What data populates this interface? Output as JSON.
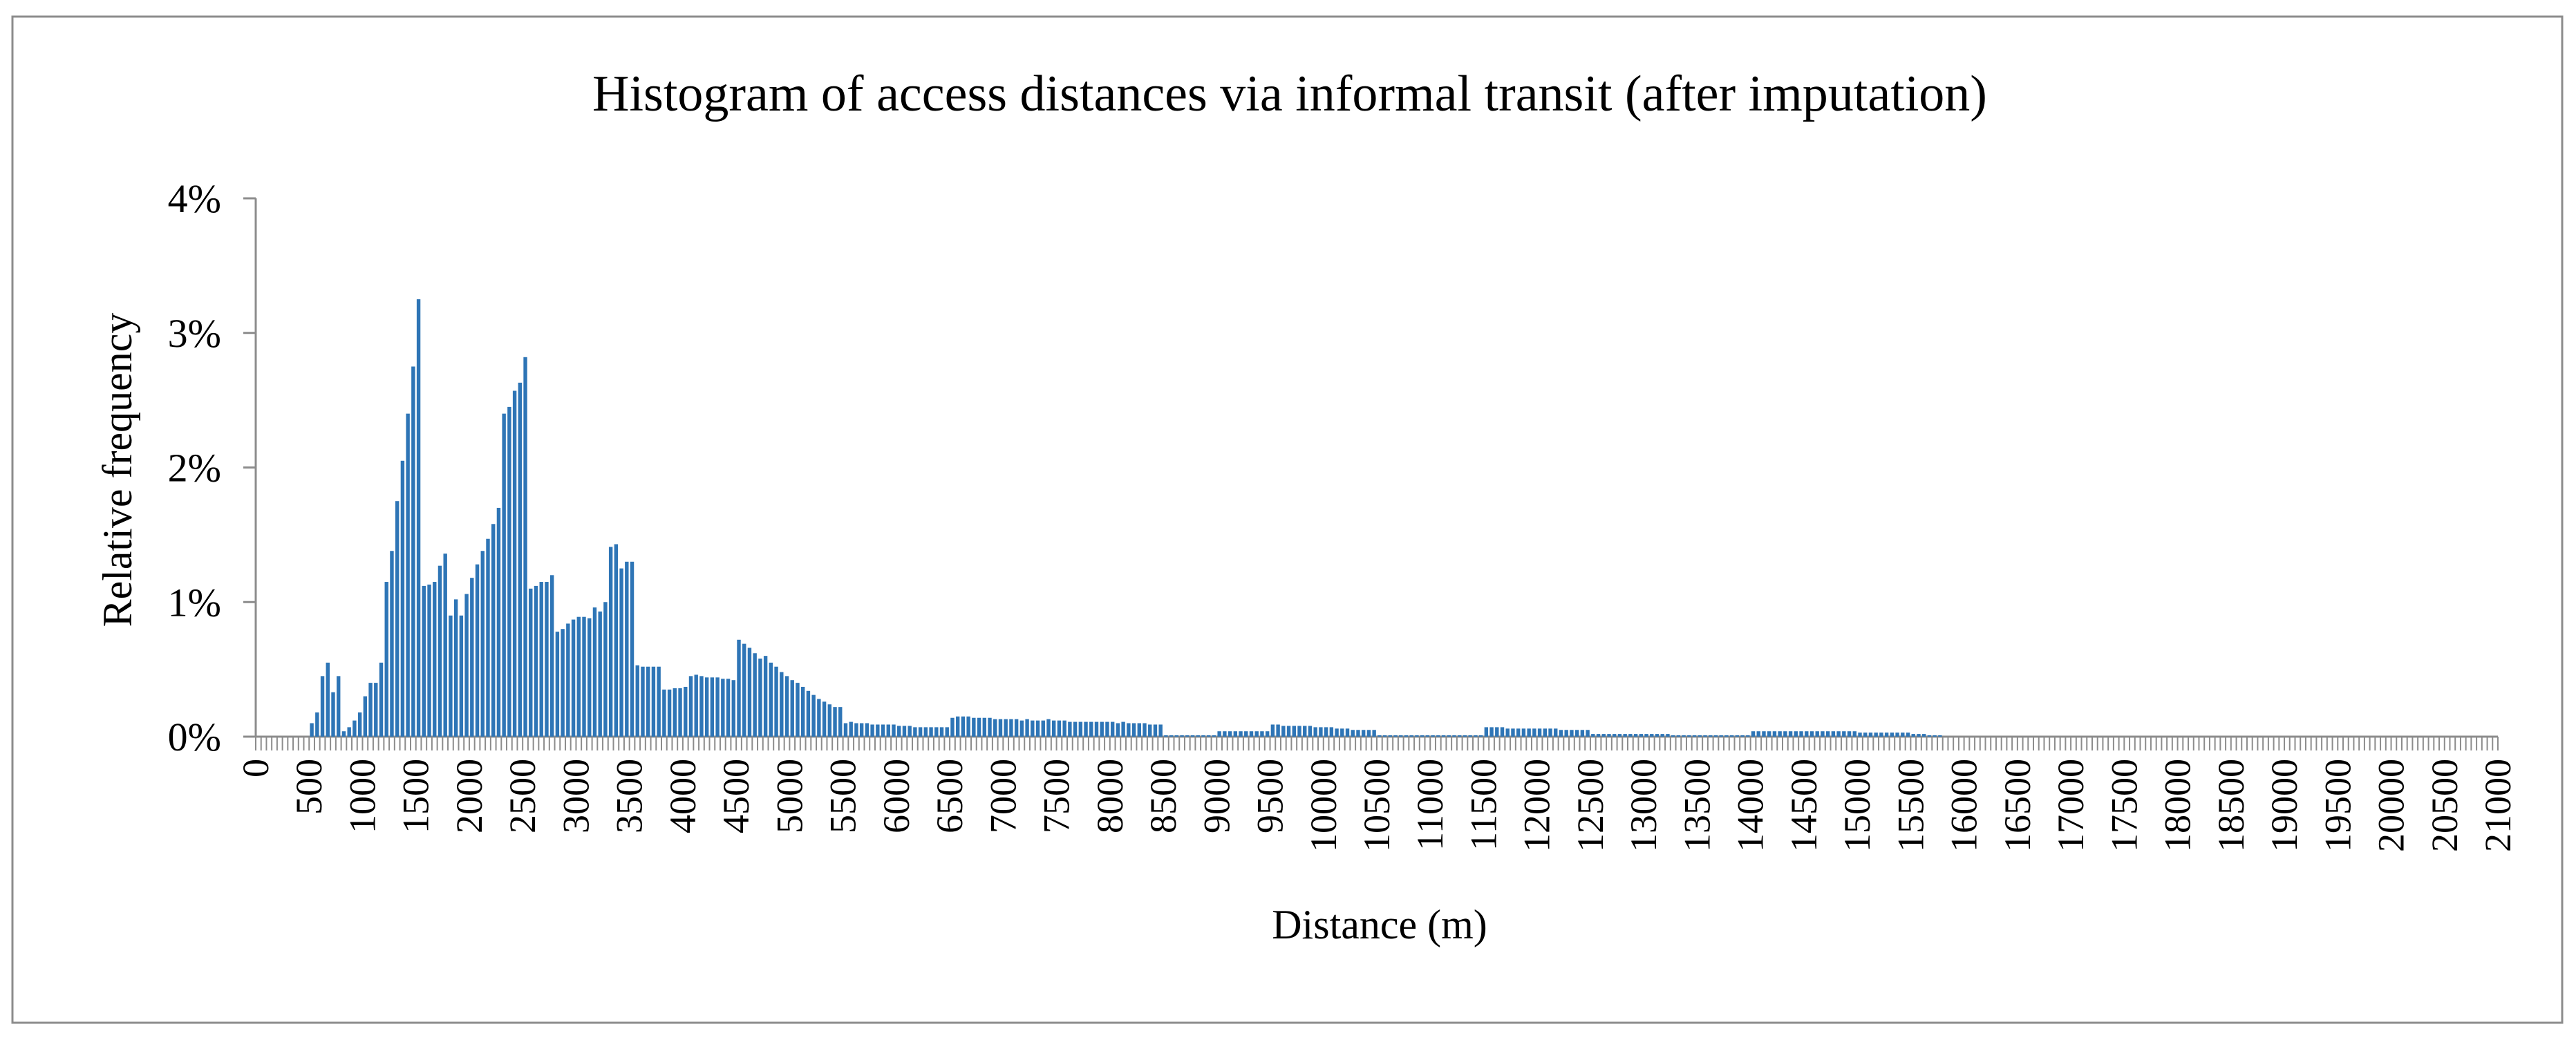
{
  "chart_data": {
    "type": "bar",
    "title": "Histogram of access distances via informal transit (after imputation)",
    "xlabel": "Distance (m)",
    "ylabel": "Relative  frequency",
    "y_ticks": [
      "0%",
      "1%",
      "2%",
      "3%",
      "4%"
    ],
    "ylim": [
      0,
      4
    ],
    "y_unit": "%",
    "x_ticks": [
      "0",
      "500",
      "1000",
      "1500",
      "2000",
      "2500",
      "3000",
      "3500",
      "4000",
      "4500",
      "5000",
      "5500",
      "6000",
      "6500",
      "7000",
      "7500",
      "8000",
      "8500",
      "9000",
      "9500",
      "10000",
      "10500",
      "11000",
      "11500",
      "12000",
      "12500",
      "13000",
      "13500",
      "14000",
      "14500",
      "15000",
      "15500",
      "16000",
      "16500",
      "17000",
      "17500",
      "18000",
      "18500",
      "19000",
      "19500",
      "20000",
      "20500",
      "21000"
    ],
    "xlim": [
      0,
      21000
    ],
    "bin_width": 50,
    "grid": false,
    "legend": "none",
    "bar_color": "#2e75b6",
    "points": [
      [
        500,
        0.1
      ],
      [
        550,
        0.18
      ],
      [
        600,
        0.45
      ],
      [
        650,
        0.55
      ],
      [
        700,
        0.33
      ],
      [
        750,
        0.45
      ],
      [
        800,
        0.04
      ],
      [
        850,
        0.07
      ],
      [
        900,
        0.12
      ],
      [
        950,
        0.18
      ],
      [
        1000,
        0.3
      ],
      [
        1050,
        0.4
      ],
      [
        1100,
        0.4
      ],
      [
        1150,
        0.55
      ],
      [
        1200,
        1.15
      ],
      [
        1250,
        1.38
      ],
      [
        1300,
        1.75
      ],
      [
        1350,
        2.05
      ],
      [
        1400,
        2.4
      ],
      [
        1450,
        2.75
      ],
      [
        1500,
        3.25
      ],
      [
        1550,
        1.12
      ],
      [
        1600,
        1.13
      ],
      [
        1650,
        1.15
      ],
      [
        1700,
        1.27
      ],
      [
        1750,
        1.36
      ],
      [
        1800,
        0.9
      ],
      [
        1850,
        1.02
      ],
      [
        1900,
        0.9
      ],
      [
        1950,
        1.06
      ],
      [
        2000,
        1.18
      ],
      [
        2050,
        1.28
      ],
      [
        2100,
        1.38
      ],
      [
        2150,
        1.47
      ],
      [
        2200,
        1.58
      ],
      [
        2250,
        1.7
      ],
      [
        2300,
        2.4
      ],
      [
        2350,
        2.45
      ],
      [
        2400,
        2.57
      ],
      [
        2450,
        2.63
      ],
      [
        2500,
        2.82
      ],
      [
        2550,
        1.1
      ],
      [
        2600,
        1.12
      ],
      [
        2650,
        1.15
      ],
      [
        2700,
        1.15
      ],
      [
        2750,
        1.2
      ],
      [
        2800,
        0.78
      ],
      [
        2850,
        0.8
      ],
      [
        2900,
        0.84
      ],
      [
        2950,
        0.87
      ],
      [
        3000,
        0.89
      ],
      [
        3050,
        0.89
      ],
      [
        3100,
        0.88
      ],
      [
        3150,
        0.96
      ],
      [
        3200,
        0.93
      ],
      [
        3250,
        1.0
      ],
      [
        3300,
        1.41
      ],
      [
        3350,
        1.43
      ],
      [
        3400,
        1.25
      ],
      [
        3450,
        1.3
      ],
      [
        3500,
        1.3
      ],
      [
        3550,
        0.53
      ],
      [
        3600,
        0.52
      ],
      [
        3650,
        0.52
      ],
      [
        3700,
        0.52
      ],
      [
        3750,
        0.52
      ],
      [
        3800,
        0.35
      ],
      [
        3850,
        0.35
      ],
      [
        3900,
        0.36
      ],
      [
        3950,
        0.36
      ],
      [
        4000,
        0.37
      ],
      [
        4050,
        0.45
      ],
      [
        4100,
        0.46
      ],
      [
        4150,
        0.45
      ],
      [
        4200,
        0.44
      ],
      [
        4250,
        0.44
      ],
      [
        4300,
        0.44
      ],
      [
        4350,
        0.43
      ],
      [
        4400,
        0.43
      ],
      [
        4450,
        0.42
      ],
      [
        4500,
        0.72
      ],
      [
        4550,
        0.69
      ],
      [
        4600,
        0.66
      ],
      [
        4650,
        0.62
      ],
      [
        4700,
        0.58
      ],
      [
        4750,
        0.6
      ],
      [
        4800,
        0.55
      ],
      [
        4850,
        0.52
      ],
      [
        4900,
        0.48
      ],
      [
        4950,
        0.45
      ],
      [
        5000,
        0.42
      ],
      [
        5050,
        0.4
      ],
      [
        5100,
        0.37
      ],
      [
        5150,
        0.34
      ],
      [
        5200,
        0.31
      ],
      [
        5250,
        0.28
      ],
      [
        5300,
        0.26
      ],
      [
        5350,
        0.24
      ],
      [
        5400,
        0.22
      ],
      [
        5450,
        0.22
      ],
      [
        5500,
        0.1
      ],
      [
        5550,
        0.11
      ],
      [
        5600,
        0.1
      ],
      [
        5650,
        0.1
      ],
      [
        5700,
        0.1
      ],
      [
        5750,
        0.09
      ],
      [
        5800,
        0.09
      ],
      [
        5850,
        0.09
      ],
      [
        5900,
        0.09
      ],
      [
        5950,
        0.09
      ],
      [
        6000,
        0.08
      ],
      [
        6050,
        0.08
      ],
      [
        6100,
        0.08
      ],
      [
        6150,
        0.07
      ],
      [
        6200,
        0.07
      ],
      [
        6250,
        0.07
      ],
      [
        6300,
        0.07
      ],
      [
        6350,
        0.07
      ],
      [
        6400,
        0.07
      ],
      [
        6450,
        0.07
      ],
      [
        6500,
        0.14
      ],
      [
        6550,
        0.15
      ],
      [
        6600,
        0.15
      ],
      [
        6650,
        0.15
      ],
      [
        6700,
        0.14
      ],
      [
        6750,
        0.14
      ],
      [
        6800,
        0.14
      ],
      [
        6850,
        0.14
      ],
      [
        6900,
        0.13
      ],
      [
        6950,
        0.13
      ],
      [
        7000,
        0.13
      ],
      [
        7050,
        0.13
      ],
      [
        7100,
        0.13
      ],
      [
        7150,
        0.12
      ],
      [
        7200,
        0.13
      ],
      [
        7250,
        0.12
      ],
      [
        7300,
        0.12
      ],
      [
        7350,
        0.12
      ],
      [
        7400,
        0.13
      ],
      [
        7450,
        0.12
      ],
      [
        7500,
        0.12
      ],
      [
        7550,
        0.12
      ],
      [
        7600,
        0.11
      ],
      [
        7650,
        0.11
      ],
      [
        7700,
        0.11
      ],
      [
        7750,
        0.11
      ],
      [
        7800,
        0.11
      ],
      [
        7850,
        0.11
      ],
      [
        7900,
        0.11
      ],
      [
        7950,
        0.11
      ],
      [
        8000,
        0.11
      ],
      [
        8050,
        0.1
      ],
      [
        8100,
        0.11
      ],
      [
        8150,
        0.1
      ],
      [
        8200,
        0.1
      ],
      [
        8250,
        0.1
      ],
      [
        8300,
        0.1
      ],
      [
        8350,
        0.09
      ],
      [
        8400,
        0.09
      ],
      [
        8450,
        0.09
      ],
      [
        8500,
        0.01
      ],
      [
        8550,
        0.01
      ],
      [
        8600,
        0.01
      ],
      [
        8650,
        0.01
      ],
      [
        8700,
        0.01
      ],
      [
        8750,
        0.01
      ],
      [
        8800,
        0.01
      ],
      [
        8850,
        0.01
      ],
      [
        8900,
        0.01
      ],
      [
        8950,
        0.01
      ],
      [
        9000,
        0.04
      ],
      [
        9050,
        0.04
      ],
      [
        9100,
        0.04
      ],
      [
        9150,
        0.04
      ],
      [
        9200,
        0.04
      ],
      [
        9250,
        0.04
      ],
      [
        9300,
        0.04
      ],
      [
        9350,
        0.04
      ],
      [
        9400,
        0.04
      ],
      [
        9450,
        0.04
      ],
      [
        9500,
        0.09
      ],
      [
        9550,
        0.09
      ],
      [
        9600,
        0.08
      ],
      [
        9650,
        0.08
      ],
      [
        9700,
        0.08
      ],
      [
        9750,
        0.08
      ],
      [
        9800,
        0.08
      ],
      [
        9850,
        0.08
      ],
      [
        9900,
        0.07
      ],
      [
        9950,
        0.07
      ],
      [
        10000,
        0.07
      ],
      [
        10050,
        0.07
      ],
      [
        10100,
        0.06
      ],
      [
        10150,
        0.06
      ],
      [
        10200,
        0.06
      ],
      [
        10250,
        0.05
      ],
      [
        10300,
        0.05
      ],
      [
        10350,
        0.05
      ],
      [
        10400,
        0.05
      ],
      [
        10450,
        0.05
      ],
      [
        10500,
        0.01
      ],
      [
        10550,
        0.01
      ],
      [
        10600,
        0.01
      ],
      [
        10650,
        0.01
      ],
      [
        10700,
        0.01
      ],
      [
        10750,
        0.01
      ],
      [
        10800,
        0.01
      ],
      [
        10850,
        0.01
      ],
      [
        10900,
        0.01
      ],
      [
        10950,
        0.01
      ],
      [
        11000,
        0.01
      ],
      [
        11050,
        0.01
      ],
      [
        11100,
        0.01
      ],
      [
        11150,
        0.01
      ],
      [
        11200,
        0.01
      ],
      [
        11250,
        0.01
      ],
      [
        11300,
        0.01
      ],
      [
        11350,
        0.01
      ],
      [
        11400,
        0.01
      ],
      [
        11450,
        0.01
      ],
      [
        11500,
        0.07
      ],
      [
        11550,
        0.07
      ],
      [
        11600,
        0.07
      ],
      [
        11650,
        0.07
      ],
      [
        11700,
        0.06
      ],
      [
        11750,
        0.06
      ],
      [
        11800,
        0.06
      ],
      [
        11850,
        0.06
      ],
      [
        11900,
        0.06
      ],
      [
        11950,
        0.06
      ],
      [
        12000,
        0.06
      ],
      [
        12050,
        0.06
      ],
      [
        12100,
        0.06
      ],
      [
        12150,
        0.06
      ],
      [
        12200,
        0.05
      ],
      [
        12250,
        0.05
      ],
      [
        12300,
        0.05
      ],
      [
        12350,
        0.05
      ],
      [
        12400,
        0.05
      ],
      [
        12450,
        0.05
      ],
      [
        12500,
        0.02
      ],
      [
        12550,
        0.02
      ],
      [
        12600,
        0.02
      ],
      [
        12650,
        0.02
      ],
      [
        12700,
        0.02
      ],
      [
        12750,
        0.02
      ],
      [
        12800,
        0.02
      ],
      [
        12850,
        0.02
      ],
      [
        12900,
        0.02
      ],
      [
        12950,
        0.02
      ],
      [
        13000,
        0.02
      ],
      [
        13050,
        0.02
      ],
      [
        13100,
        0.02
      ],
      [
        13150,
        0.02
      ],
      [
        13200,
        0.02
      ],
      [
        13250,
        0.01
      ],
      [
        13300,
        0.01
      ],
      [
        13350,
        0.01
      ],
      [
        13400,
        0.01
      ],
      [
        13450,
        0.01
      ],
      [
        13500,
        0.01
      ],
      [
        13550,
        0.01
      ],
      [
        13600,
        0.01
      ],
      [
        13650,
        0.01
      ],
      [
        13700,
        0.01
      ],
      [
        13750,
        0.01
      ],
      [
        13800,
        0.01
      ],
      [
        13850,
        0.01
      ],
      [
        13900,
        0.01
      ],
      [
        13950,
        0.01
      ],
      [
        14000,
        0.04
      ],
      [
        14050,
        0.04
      ],
      [
        14100,
        0.04
      ],
      [
        14150,
        0.04
      ],
      [
        14200,
        0.04
      ],
      [
        14250,
        0.04
      ],
      [
        14300,
        0.04
      ],
      [
        14350,
        0.04
      ],
      [
        14400,
        0.04
      ],
      [
        14450,
        0.04
      ],
      [
        14500,
        0.04
      ],
      [
        14550,
        0.04
      ],
      [
        14600,
        0.04
      ],
      [
        14650,
        0.04
      ],
      [
        14700,
        0.04
      ],
      [
        14750,
        0.04
      ],
      [
        14800,
        0.04
      ],
      [
        14850,
        0.04
      ],
      [
        14900,
        0.04
      ],
      [
        14950,
        0.04
      ],
      [
        15000,
        0.03
      ],
      [
        15050,
        0.03
      ],
      [
        15100,
        0.03
      ],
      [
        15150,
        0.03
      ],
      [
        15200,
        0.03
      ],
      [
        15250,
        0.03
      ],
      [
        15300,
        0.03
      ],
      [
        15350,
        0.03
      ],
      [
        15400,
        0.03
      ],
      [
        15450,
        0.03
      ],
      [
        15500,
        0.02
      ],
      [
        15550,
        0.02
      ],
      [
        15600,
        0.02
      ],
      [
        15650,
        0.01
      ],
      [
        15700,
        0.01
      ],
      [
        15750,
        0.01
      ]
    ]
  }
}
